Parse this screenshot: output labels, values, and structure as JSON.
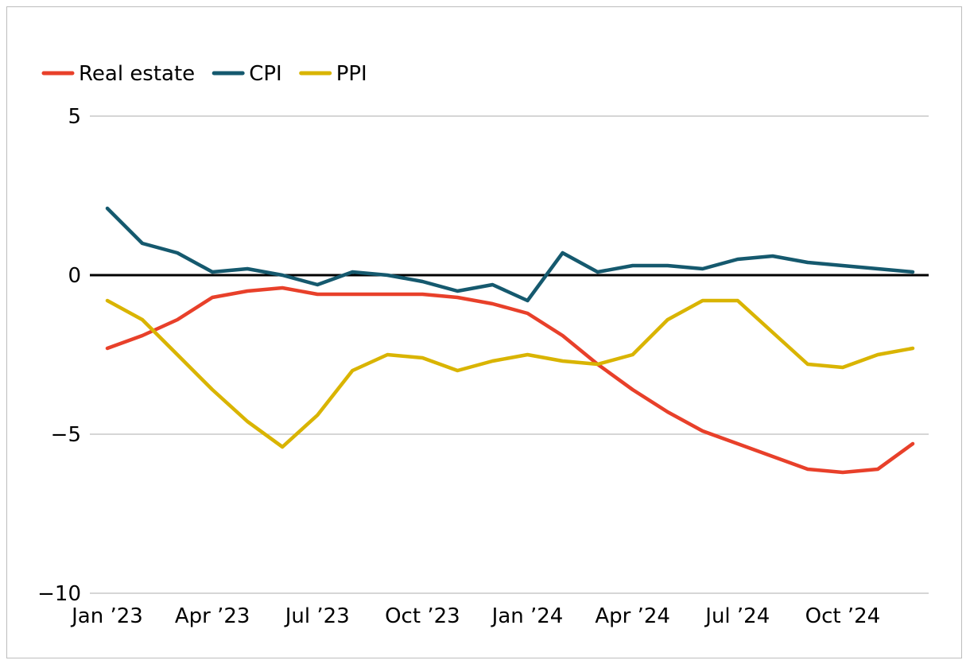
{
  "chart_data": {
    "type": "line",
    "title": "",
    "xlabel": "",
    "ylabel": "",
    "ylim": [
      -10,
      5
    ],
    "yticks": [
      {
        "value": 5,
        "label": "5"
      },
      {
        "value": 0,
        "label": "0"
      },
      {
        "value": -5,
        "label": "−5"
      },
      {
        "value": -10,
        "label": "−10"
      }
    ],
    "xticks": [
      {
        "value": "2023-01",
        "label": "Jan ’23"
      },
      {
        "value": "2023-04",
        "label": "Apr ’23"
      },
      {
        "value": "2023-07",
        "label": "Jul ’23"
      },
      {
        "value": "2023-10",
        "label": "Oct ’23"
      },
      {
        "value": "2024-01",
        "label": "Jan ’24"
      },
      {
        "value": "2024-04",
        "label": "Apr ’24"
      },
      {
        "value": "2024-07",
        "label": "Jul ’24"
      },
      {
        "value": "2024-10",
        "label": "Oct ’24"
      }
    ],
    "grid": true,
    "legend_position": "top-left",
    "x": [
      "2023-01",
      "2023-02",
      "2023-03",
      "2023-04",
      "2023-05",
      "2023-06",
      "2023-07",
      "2023-08",
      "2023-09",
      "2023-10",
      "2023-11",
      "2023-12",
      "2024-01",
      "2024-02",
      "2024-03",
      "2024-04",
      "2024-05",
      "2024-06",
      "2024-07",
      "2024-08",
      "2024-09",
      "2024-10",
      "2024-11",
      "2024-12"
    ],
    "series": [
      {
        "name": "Real estate",
        "color": "#e8402a",
        "values": [
          -2.3,
          -1.9,
          -1.4,
          -0.7,
          -0.5,
          -0.4,
          -0.6,
          -0.6,
          -0.6,
          -0.6,
          -0.7,
          -0.9,
          -1.2,
          -1.9,
          -2.8,
          -3.6,
          -4.3,
          -4.9,
          -5.3,
          -5.7,
          -6.1,
          -6.2,
          -6.1,
          -5.3
        ]
      },
      {
        "name": "CPI",
        "color": "#15596e",
        "values": [
          2.1,
          1.0,
          0.7,
          0.1,
          0.2,
          0.0,
          -0.3,
          0.1,
          0.0,
          -0.2,
          -0.5,
          -0.3,
          -0.8,
          0.7,
          0.1,
          0.3,
          0.3,
          0.2,
          0.5,
          0.6,
          0.4,
          0.3,
          0.2,
          0.1
        ]
      },
      {
        "name": "PPI",
        "color": "#d9b400",
        "values": [
          -0.8,
          -1.4,
          -2.5,
          -3.6,
          -4.6,
          -5.4,
          -4.4,
          -3.0,
          -2.5,
          -2.6,
          -3.0,
          -2.7,
          -2.5,
          -2.7,
          -2.8,
          -2.5,
          -1.4,
          -0.8,
          -0.8,
          -1.8,
          -2.8,
          -2.9,
          -2.5,
          -2.3
        ]
      }
    ]
  }
}
